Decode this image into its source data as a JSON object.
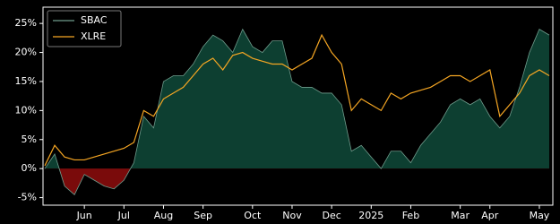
{
  "chart_data": {
    "type": "area-line",
    "categories": [
      null,
      null,
      null,
      null,
      "Jun",
      null,
      null,
      null,
      "Jul",
      null,
      null,
      null,
      "Aug",
      null,
      null,
      null,
      "Sep",
      null,
      null,
      null,
      null,
      "Oct",
      null,
      null,
      null,
      "Nov",
      null,
      null,
      null,
      "Dec",
      null,
      null,
      null,
      "2025",
      null,
      null,
      null,
      "Feb",
      null,
      null,
      null,
      null,
      "Mar",
      null,
      null,
      "Apr",
      null,
      null,
      null,
      null,
      "May",
      null
    ],
    "series": [
      {
        "name": "SBAC",
        "color": "#0d3f31",
        "line_color": "#6f9c8c",
        "negative_color": "#7a0b0b",
        "values": [
          0,
          2.5,
          -3,
          -4.5,
          -1,
          -2,
          -3,
          -3.5,
          -2,
          1,
          9,
          7,
          15,
          16,
          16,
          18,
          21,
          23,
          22,
          20,
          24,
          21,
          20,
          22,
          22,
          15,
          14,
          14,
          13,
          13,
          11,
          3,
          4,
          2,
          0,
          3,
          3,
          1,
          4,
          6,
          8,
          11,
          12,
          11,
          12,
          9,
          7,
          9,
          14,
          20,
          24,
          23
        ]
      },
      {
        "name": "XLRE",
        "color": "#f5a623",
        "values": [
          0.5,
          4,
          2,
          1.5,
          1.5,
          2,
          2.5,
          3,
          3.5,
          4.5,
          10,
          9,
          12,
          13,
          14,
          16,
          18,
          19,
          17,
          19.5,
          20,
          19,
          18.5,
          18,
          18,
          17,
          18,
          19,
          23,
          20,
          18,
          10,
          12,
          11,
          10,
          13,
          12,
          13,
          13.5,
          14,
          15,
          16,
          16,
          15,
          16,
          17,
          9,
          11,
          13,
          16,
          17,
          16
        ]
      }
    ],
    "ylim": [
      -6.3,
      27.8
    ],
    "yticks": [
      {
        "value": -5,
        "label": "-5%"
      },
      {
        "value": 0,
        "label": "0%"
      },
      {
        "value": 5,
        "label": "5%"
      },
      {
        "value": 10,
        "label": "10%"
      },
      {
        "value": 15,
        "label": "15%"
      },
      {
        "value": 20,
        "label": "20%"
      },
      {
        "value": 25,
        "label": "25%"
      }
    ],
    "legend": "upper left"
  }
}
